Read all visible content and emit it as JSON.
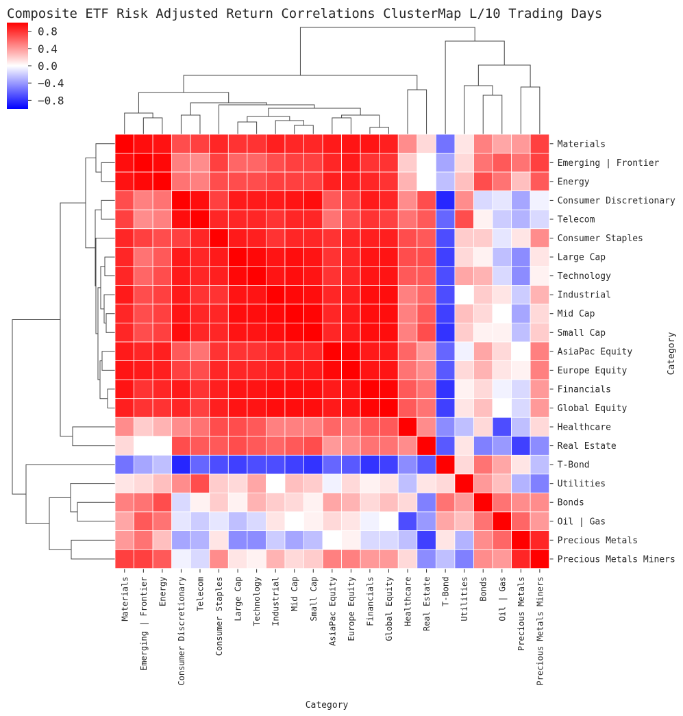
{
  "chart_data": {
    "type": "heatmap",
    "title": "Composite ETF Risk Adjusted Return Correlations ClusterMap L/10 Trading Days",
    "xlabel": "Category",
    "ylabel": "Category",
    "colormap": "bwr",
    "colors": {
      "low": "#0000ff",
      "mid": "#ffffff",
      "high": "#ff0000",
      "line": "#444444"
    },
    "vmin": -1,
    "vmax": 1,
    "colorbar_ticks": [
      0.8,
      0.4,
      0.0,
      -0.4,
      -0.8
    ],
    "colorbar_tick_labels": [
      "0.8",
      "0.4",
      "0.0",
      "−0.4",
      "−0.8"
    ],
    "labels": [
      "Materials",
      "Emerging | Frontier",
      "Energy",
      "Consumer Discretionary",
      "Telecom",
      "Consumer Staples",
      "Large Cap",
      "Technology",
      "Industrial",
      "Mid Cap",
      "Small Cap",
      "AsiaPac Equity",
      "Europe Equity",
      "Financials",
      "Global Equity",
      "Healthcare",
      "Real Estate",
      "T-Bond",
      "Utilities",
      "Bonds",
      "Oil | Gas",
      "Precious Metals",
      "Precious Metals Miners"
    ],
    "values": [
      [
        1.0,
        0.95,
        0.93,
        0.7,
        0.75,
        0.85,
        0.8,
        0.8,
        0.88,
        0.85,
        0.85,
        0.9,
        0.92,
        0.92,
        0.88,
        0.45,
        0.15,
        -0.55,
        0.1,
        0.5,
        0.35,
        0.4,
        0.75
      ],
      [
        0.95,
        1.0,
        0.97,
        0.5,
        0.45,
        0.75,
        0.6,
        0.6,
        0.7,
        0.75,
        0.75,
        0.85,
        0.9,
        0.8,
        0.8,
        0.2,
        0.0,
        -0.35,
        0.15,
        0.55,
        0.65,
        0.55,
        0.75
      ],
      [
        0.93,
        0.97,
        1.0,
        0.55,
        0.5,
        0.7,
        0.7,
        0.7,
        0.75,
        0.75,
        0.75,
        0.88,
        0.88,
        0.85,
        0.8,
        0.3,
        0.0,
        -0.25,
        0.25,
        0.7,
        0.55,
        0.25,
        0.65
      ],
      [
        0.7,
        0.5,
        0.55,
        1.0,
        0.95,
        0.75,
        0.9,
        0.9,
        0.9,
        0.92,
        0.95,
        0.65,
        0.75,
        0.9,
        0.85,
        0.45,
        0.7,
        -0.85,
        0.45,
        -0.15,
        -0.1,
        -0.35,
        -0.05
      ],
      [
        0.75,
        0.45,
        0.5,
        0.95,
        1.0,
        0.85,
        0.85,
        0.85,
        0.8,
        0.85,
        0.85,
        0.55,
        0.7,
        0.8,
        0.75,
        0.55,
        0.65,
        -0.6,
        0.7,
        0.05,
        -0.2,
        -0.3,
        -0.15
      ],
      [
        0.85,
        0.75,
        0.7,
        0.75,
        0.85,
        1.0,
        0.9,
        0.88,
        0.8,
        0.85,
        0.85,
        0.8,
        0.85,
        0.88,
        0.88,
        0.7,
        0.65,
        -0.7,
        0.2,
        0.2,
        -0.1,
        0.1,
        0.45
      ],
      [
        0.85,
        0.55,
        0.65,
        0.9,
        0.85,
        0.9,
        1.0,
        0.97,
        0.92,
        0.95,
        0.92,
        0.8,
        0.85,
        0.92,
        0.92,
        0.7,
        0.7,
        -0.75,
        0.15,
        0.05,
        -0.25,
        -0.45,
        0.1
      ],
      [
        0.85,
        0.6,
        0.7,
        0.9,
        0.85,
        0.88,
        0.97,
        1.0,
        0.92,
        0.95,
        0.92,
        0.8,
        0.85,
        0.92,
        0.92,
        0.65,
        0.65,
        -0.7,
        0.35,
        0.3,
        -0.15,
        -0.45,
        0.05
      ],
      [
        0.9,
        0.7,
        0.75,
        0.9,
        0.8,
        0.8,
        0.92,
        0.92,
        1.0,
        0.97,
        0.95,
        0.85,
        0.88,
        0.95,
        0.95,
        0.5,
        0.6,
        -0.7,
        0.0,
        0.2,
        0.1,
        -0.2,
        0.3
      ],
      [
        0.85,
        0.7,
        0.75,
        0.92,
        0.85,
        0.85,
        0.95,
        0.95,
        0.97,
        1.0,
        0.98,
        0.85,
        0.9,
        0.95,
        0.95,
        0.5,
        0.65,
        -0.75,
        0.25,
        0.15,
        0.0,
        -0.35,
        0.15
      ],
      [
        0.85,
        0.7,
        0.75,
        0.95,
        0.85,
        0.85,
        0.92,
        0.92,
        0.95,
        0.98,
        1.0,
        0.85,
        0.9,
        0.95,
        0.95,
        0.5,
        0.7,
        -0.8,
        0.2,
        0.05,
        0.05,
        -0.25,
        0.2
      ],
      [
        0.9,
        0.85,
        0.88,
        0.65,
        0.55,
        0.8,
        0.8,
        0.8,
        0.85,
        0.85,
        0.85,
        1.0,
        0.97,
        0.9,
        0.9,
        0.6,
        0.4,
        -0.6,
        -0.05,
        0.35,
        0.15,
        0.0,
        0.5
      ],
      [
        0.92,
        0.9,
        0.88,
        0.75,
        0.7,
        0.85,
        0.85,
        0.85,
        0.88,
        0.9,
        0.9,
        0.97,
        1.0,
        0.92,
        0.92,
        0.55,
        0.45,
        -0.65,
        0.15,
        0.3,
        0.1,
        0.05,
        0.5
      ],
      [
        0.92,
        0.8,
        0.85,
        0.9,
        0.8,
        0.88,
        0.92,
        0.92,
        0.95,
        0.95,
        0.95,
        0.9,
        0.92,
        1.0,
        0.98,
        0.65,
        0.55,
        -0.8,
        0.05,
        0.15,
        -0.05,
        -0.15,
        0.4
      ],
      [
        0.88,
        0.8,
        0.8,
        0.85,
        0.75,
        0.88,
        0.92,
        0.92,
        0.95,
        0.95,
        0.95,
        0.9,
        0.92,
        0.98,
        1.0,
        0.65,
        0.55,
        -0.75,
        0.1,
        0.25,
        0.0,
        -0.15,
        0.4
      ],
      [
        0.45,
        0.2,
        0.3,
        0.45,
        0.55,
        0.7,
        0.7,
        0.65,
        0.5,
        0.5,
        0.5,
        0.6,
        0.55,
        0.65,
        0.65,
        1.0,
        0.45,
        -0.45,
        -0.25,
        0.15,
        -0.7,
        -0.25,
        0.15
      ],
      [
        0.15,
        0.0,
        0.0,
        0.7,
        0.65,
        0.65,
        0.7,
        0.65,
        0.6,
        0.65,
        0.7,
        0.4,
        0.45,
        0.55,
        0.55,
        0.45,
        1.0,
        -0.65,
        0.1,
        -0.5,
        -0.4,
        -0.75,
        -0.45
      ],
      [
        -0.55,
        -0.35,
        -0.25,
        -0.85,
        -0.6,
        -0.7,
        -0.75,
        -0.7,
        -0.7,
        -0.75,
        -0.8,
        -0.6,
        -0.65,
        -0.8,
        -0.75,
        -0.45,
        -0.65,
        1.0,
        0.15,
        0.55,
        0.35,
        0.1,
        -0.25
      ],
      [
        0.1,
        0.15,
        0.25,
        0.45,
        0.7,
        0.2,
        0.15,
        0.35,
        0.0,
        0.25,
        0.2,
        -0.05,
        0.15,
        0.05,
        0.1,
        -0.25,
        0.1,
        0.15,
        1.0,
        0.4,
        0.25,
        -0.3,
        -0.5
      ],
      [
        0.5,
        0.55,
        0.7,
        -0.15,
        0.05,
        0.2,
        0.05,
        0.3,
        0.2,
        0.15,
        0.05,
        0.35,
        0.3,
        0.15,
        0.25,
        0.15,
        -0.5,
        0.55,
        0.4,
        1.0,
        0.55,
        0.45,
        0.45
      ],
      [
        0.35,
        0.65,
        0.55,
        -0.1,
        -0.2,
        -0.1,
        -0.25,
        -0.15,
        0.1,
        0.0,
        0.05,
        0.15,
        0.1,
        -0.05,
        0.0,
        -0.7,
        -0.4,
        0.35,
        0.25,
        0.55,
        1.0,
        0.6,
        0.4
      ],
      [
        0.4,
        0.55,
        0.25,
        -0.35,
        -0.3,
        0.1,
        -0.45,
        -0.45,
        -0.2,
        -0.35,
        -0.25,
        0.0,
        0.05,
        -0.15,
        -0.15,
        -0.25,
        -0.75,
        0.1,
        -0.3,
        0.45,
        0.6,
        1.0,
        0.85
      ],
      [
        0.75,
        0.75,
        0.65,
        -0.05,
        -0.15,
        0.45,
        0.1,
        0.05,
        0.3,
        0.15,
        0.2,
        0.5,
        0.5,
        0.4,
        0.4,
        0.15,
        -0.45,
        -0.25,
        -0.5,
        0.45,
        0.4,
        0.85,
        1.0
      ]
    ]
  }
}
